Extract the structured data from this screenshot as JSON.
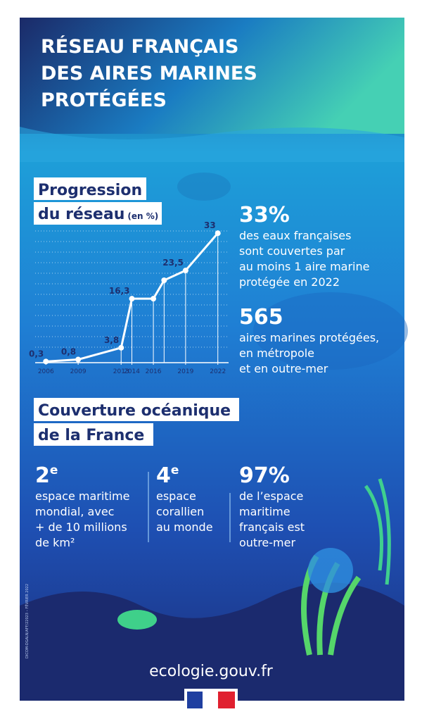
{
  "header": {
    "title": [
      "RÉSEAU FRANÇAIS",
      "DES AIRES MARINES",
      "PROTÉGÉES"
    ]
  },
  "chart_data": {
    "type": "line",
    "title": [
      "Progression",
      "du réseau"
    ],
    "title_unit": "(en %)",
    "x": [
      2006,
      2009,
      2013,
      2014,
      2016,
      2017,
      2019,
      2022
    ],
    "values": [
      0.3,
      0.8,
      3.8,
      16.3,
      16.3,
      21,
      23.5,
      33
    ],
    "value_labels": [
      "0,3",
      "0,8",
      "3,8",
      "16,3",
      null,
      null,
      "23,5",
      "33"
    ],
    "xlim": [
      2005,
      2023
    ],
    "xticks": [
      2006,
      2009,
      2013,
      2014,
      2016,
      2019,
      2022
    ],
    "ylim": [
      0,
      35
    ],
    "color": "#ffffff"
  },
  "stats": [
    {
      "value": "33%",
      "lines": [
        "des eaux françaises",
        "sont couvertes par",
        "au moins 1 aire marine",
        "protégée en 2022"
      ]
    },
    {
      "value": "565",
      "lines": [
        "aires marines protégées,",
        "en métropole",
        "et en outre-mer"
      ]
    }
  ],
  "coverage": {
    "title": [
      "Couverture océanique",
      "de la France"
    ],
    "facts": [
      {
        "value": "2",
        "sup": "e",
        "lines": [
          "espace maritime",
          "mondial, avec",
          "+ de 10 millions",
          "de km²"
        ]
      },
      {
        "value": "4",
        "sup": "e",
        "lines": [
          "espace",
          "corallien",
          "au monde"
        ]
      },
      {
        "value": "97%",
        "sup": null,
        "lines": [
          "de l’espace",
          "maritime",
          "français est",
          "outre-mer"
        ]
      }
    ]
  },
  "side_note": "DICOM-DGALN/AFF/22023 – FÉVRIER 2022",
  "footer": {
    "website": "ecologie.gouv.fr"
  }
}
